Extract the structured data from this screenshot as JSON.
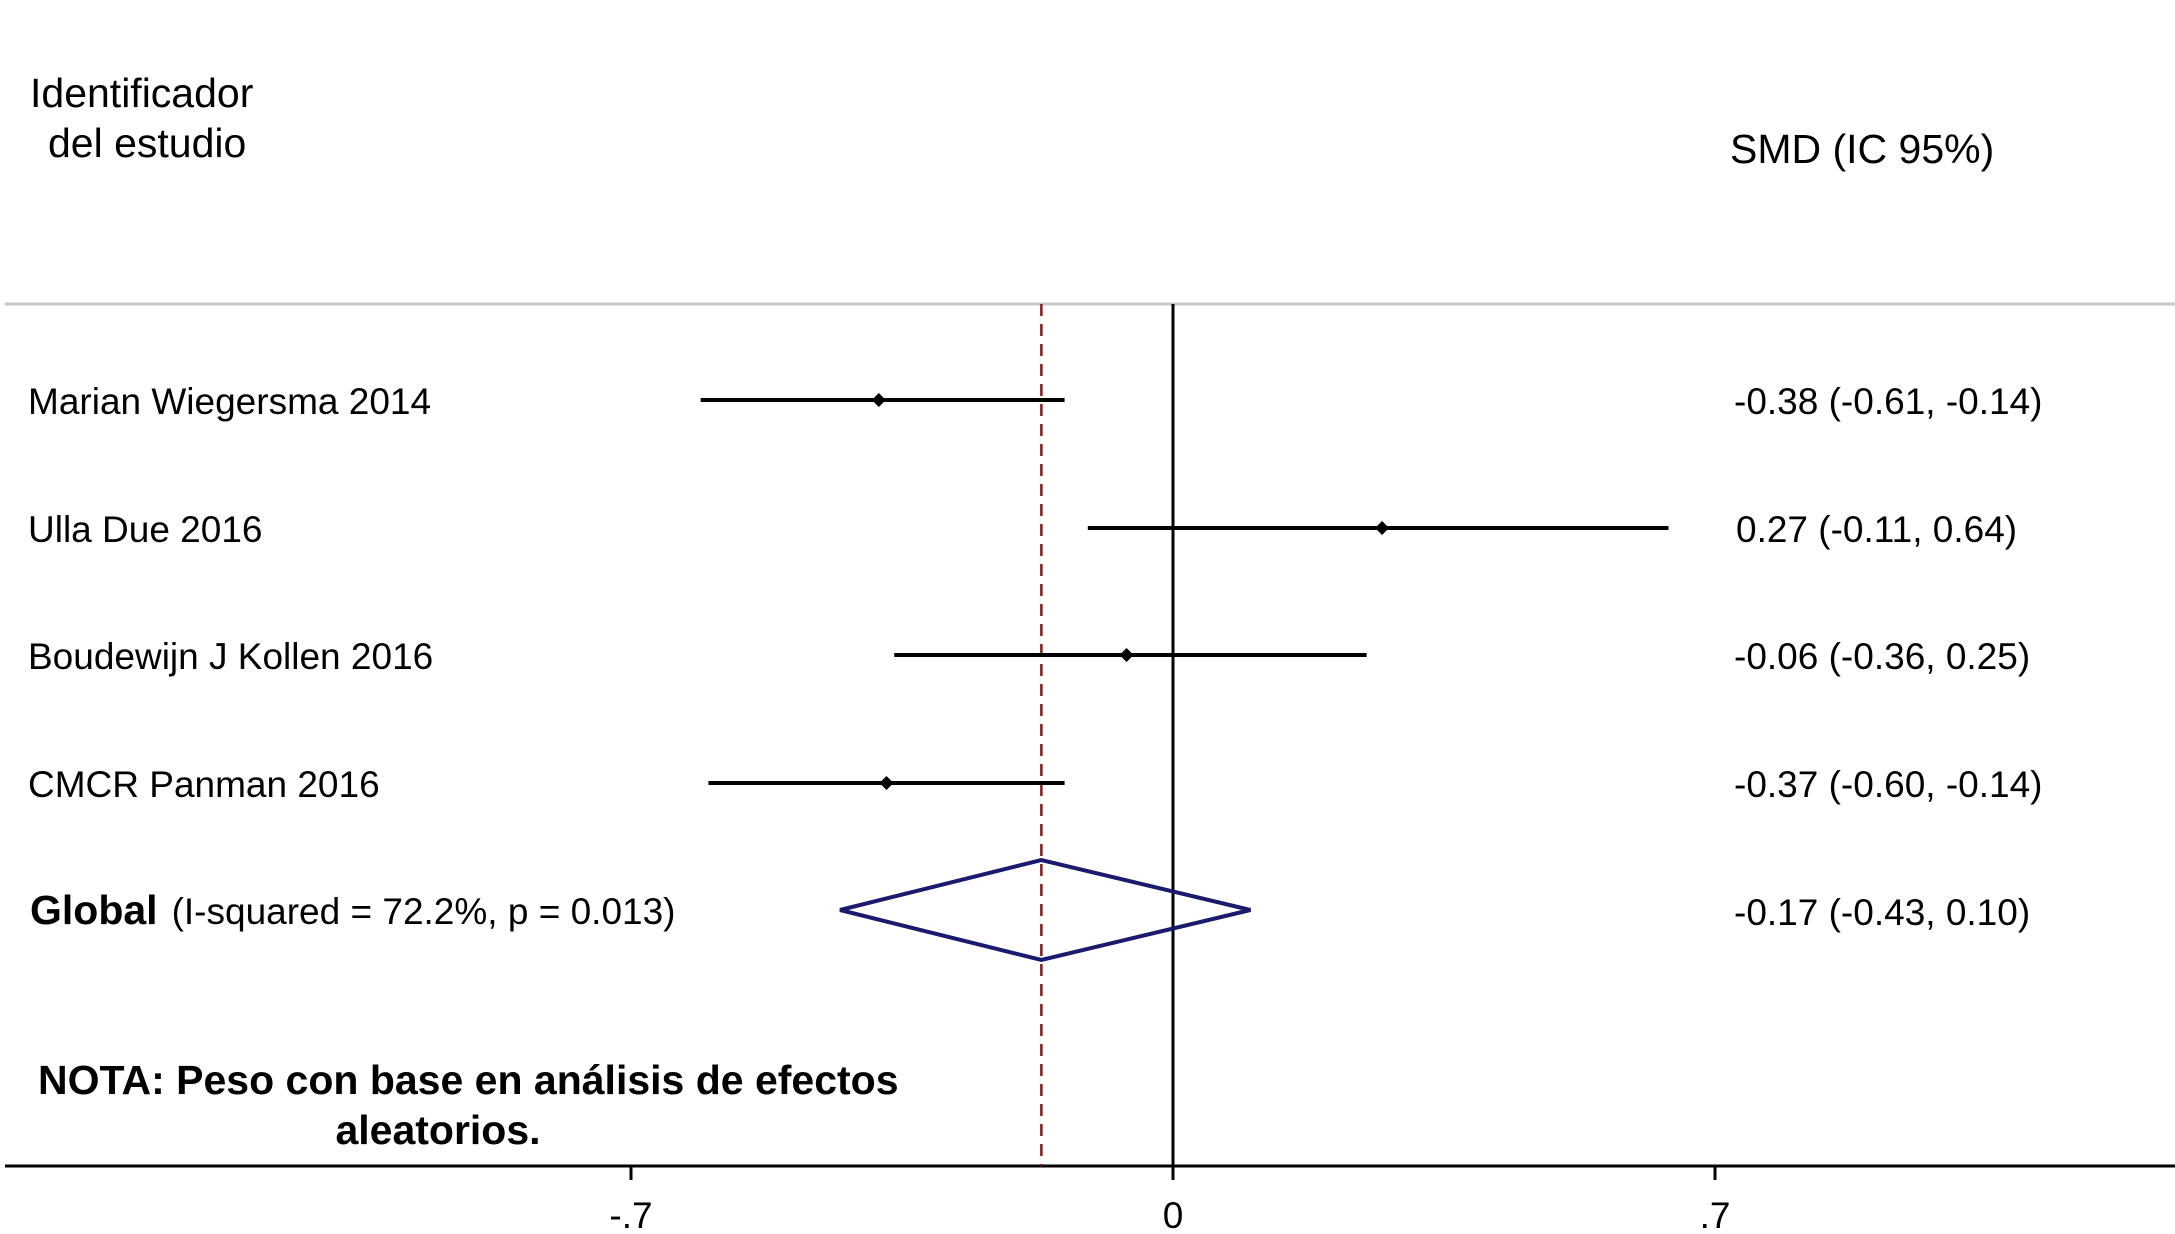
{
  "header": {
    "study_col_line1": "Identificador",
    "study_col_line2": "del estudio",
    "effect_col": "SMD (IC 95%)"
  },
  "chart_data": {
    "type": "forest",
    "xlim": [
      -1.5,
      1.3
    ],
    "ticks": [
      {
        "value": -0.7,
        "label": "-.7"
      },
      {
        "value": 0,
        "label": "0"
      },
      {
        "value": 0.7,
        "label": ".7"
      }
    ],
    "null_line": 0,
    "studies": [
      {
        "name": "Marian Wiegersma 2014",
        "smd": -0.38,
        "lo": -0.61,
        "hi": -0.14,
        "text": "-0.38 (-0.61, -0.14)"
      },
      {
        "name": "Ulla Due 2016",
        "smd": 0.27,
        "lo": -0.11,
        "hi": 0.64,
        "text": "0.27 (-0.11, 0.64)"
      },
      {
        "name": "Boudewijn J Kollen 2016",
        "smd": -0.06,
        "lo": -0.36,
        "hi": 0.25,
        "text": "-0.06 (-0.36, 0.25)"
      },
      {
        "name": "CMCR Panman  2016",
        "smd": -0.37,
        "lo": -0.6,
        "hi": -0.14,
        "text": "-0.37 (-0.60, -0.14)"
      }
    ],
    "overall": {
      "label": "Global",
      "heterogeneity": "(I-squared = 72.2%, p = 0.013)",
      "smd": -0.17,
      "lo": -0.43,
      "hi": 0.1,
      "text": "-0.17 (-0.43, 0.10)"
    },
    "colors": {
      "diamond": "#1a1a6e",
      "pooled_line": "#8b1a1a",
      "ci_line": "#000000",
      "separator": "#c8c8c8"
    }
  },
  "note": {
    "line1": "NOTA: Peso con base en análisis de efectos",
    "line2": "aleatorios."
  }
}
